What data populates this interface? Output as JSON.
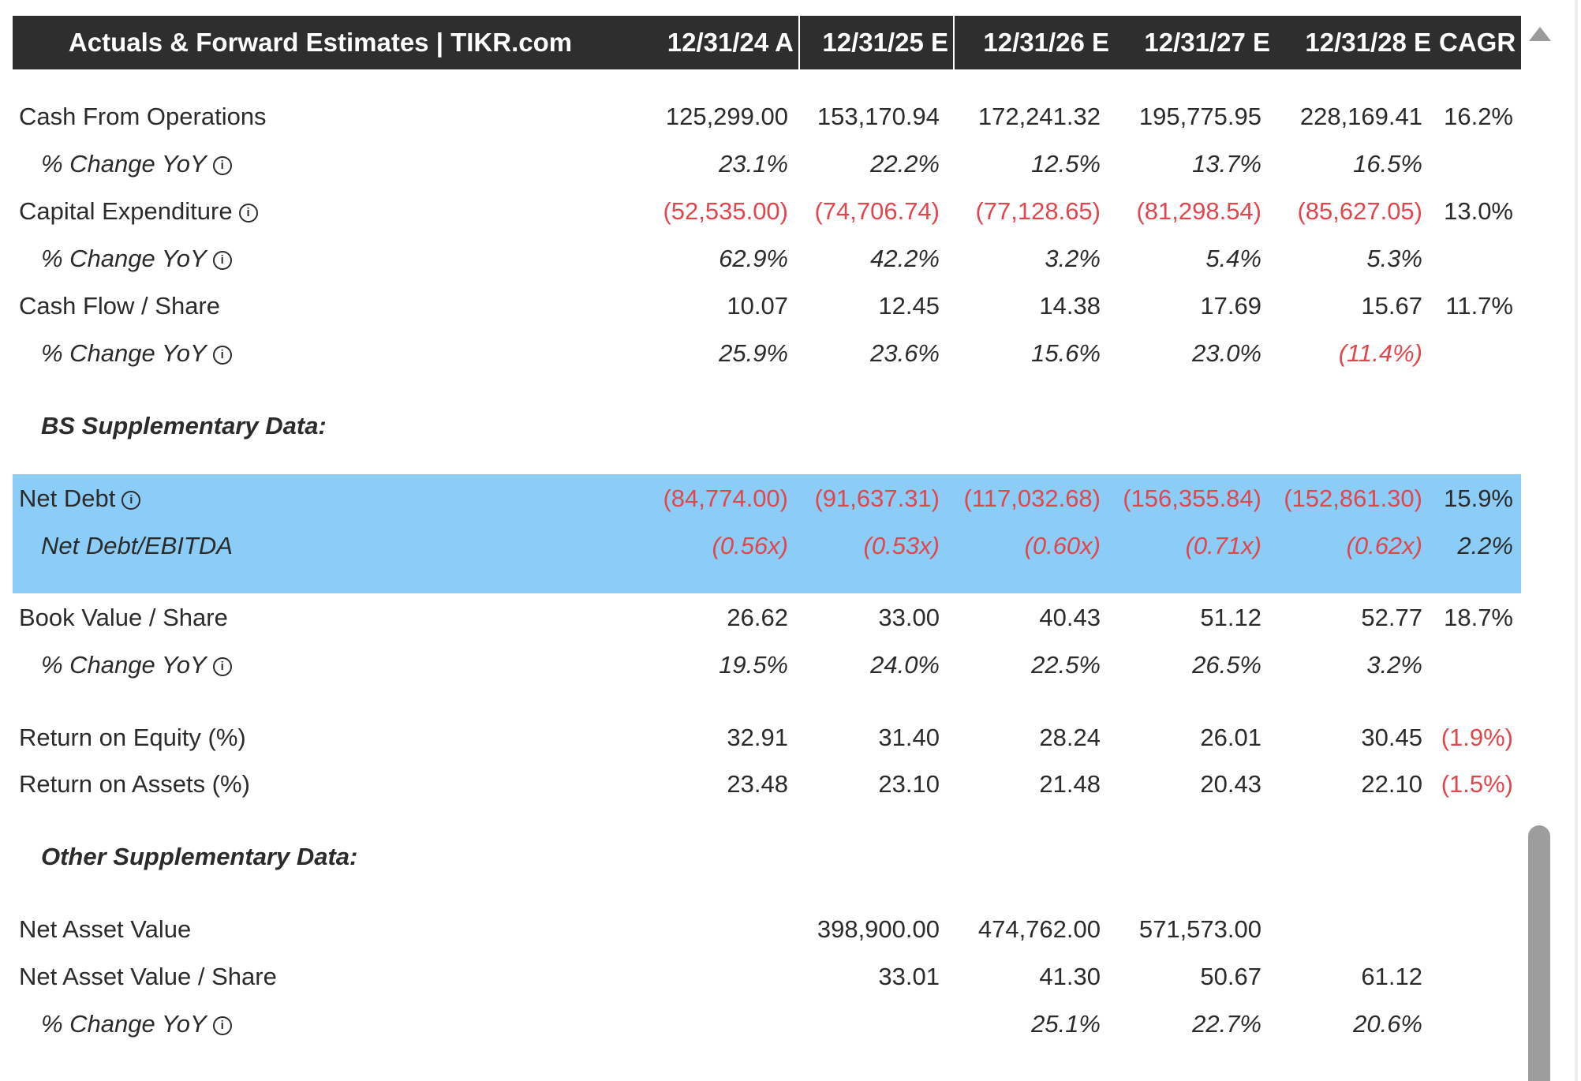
{
  "header": {
    "title": "Actuals & Forward Estimates | TIKR.com",
    "columns": [
      "12/31/24 A",
      "12/31/25 E",
      "12/31/26 E",
      "12/31/27 E",
      "12/31/28 E",
      "CAGR"
    ]
  },
  "rows": {
    "cfo": {
      "label": "Cash From Operations",
      "values": [
        "125,299.00",
        "153,170.94",
        "172,241.32",
        "195,775.95",
        "228,169.41",
        "16.2%"
      ]
    },
    "cfo_yoy": {
      "label": "% Change YoY",
      "values": [
        "23.1%",
        "22.2%",
        "12.5%",
        "13.7%",
        "16.5%"
      ]
    },
    "capex": {
      "label": "Capital Expenditure",
      "values": [
        "(52,535.00)",
        "(74,706.74)",
        "(77,128.65)",
        "(81,298.54)",
        "(85,627.05)",
        "13.0%"
      ]
    },
    "capex_yoy": {
      "label": "% Change YoY",
      "values": [
        "62.9%",
        "42.2%",
        "3.2%",
        "5.4%",
        "5.3%"
      ]
    },
    "cfps": {
      "label": "Cash Flow / Share",
      "values": [
        "10.07",
        "12.45",
        "14.38",
        "17.69",
        "15.67",
        "11.7%"
      ]
    },
    "cfps_yoy": {
      "label": "% Change YoY",
      "values": [
        "25.9%",
        "23.6%",
        "15.6%",
        "23.0%",
        "(11.4%)"
      ]
    },
    "bs_section": {
      "label": "BS Supplementary Data:"
    },
    "net_debt": {
      "label": "Net Debt",
      "values": [
        "(84,774.00)",
        "(91,637.31)",
        "(117,032.68)",
        "(156,355.84)",
        "(152,861.30)",
        "15.9%"
      ]
    },
    "nd_ebitda": {
      "label": "Net Debt/EBITDA",
      "values": [
        "(0.56x)",
        "(0.53x)",
        "(0.60x)",
        "(0.71x)",
        "(0.62x)",
        "2.2%"
      ]
    },
    "bvps": {
      "label": "Book Value / Share",
      "values": [
        "26.62",
        "33.00",
        "40.43",
        "51.12",
        "52.77",
        "18.7%"
      ]
    },
    "bvps_yoy": {
      "label": "% Change YoY",
      "values": [
        "19.5%",
        "24.0%",
        "22.5%",
        "26.5%",
        "3.2%"
      ]
    },
    "roe": {
      "label": "Return on Equity (%)",
      "values": [
        "32.91",
        "31.40",
        "28.24",
        "26.01",
        "30.45",
        "(1.9%)"
      ]
    },
    "roa": {
      "label": "Return on Assets (%)",
      "values": [
        "23.48",
        "23.10",
        "21.48",
        "20.43",
        "22.10",
        "(1.5%)"
      ]
    },
    "other_section": {
      "label": "Other Supplementary Data:"
    },
    "nav": {
      "label": "Net Asset Value",
      "values": [
        "398,900.00",
        "474,762.00",
        "571,573.00"
      ]
    },
    "navps": {
      "label": "Net Asset Value / Share",
      "values": [
        "33.01",
        "41.30",
        "50.67",
        "61.12"
      ]
    },
    "navps_yoy": {
      "label": "% Change YoY",
      "values": [
        "25.1%",
        "22.7%",
        "20.6%"
      ]
    }
  },
  "icons": {
    "info": "info-circle-icon",
    "scroll_up": "scroll-up-arrow-icon"
  },
  "colors": {
    "header_bg": "#2e2e2e",
    "highlight_bg": "#8ccdf7",
    "negative": "#e0474c",
    "text": "#2b2b2b"
  }
}
